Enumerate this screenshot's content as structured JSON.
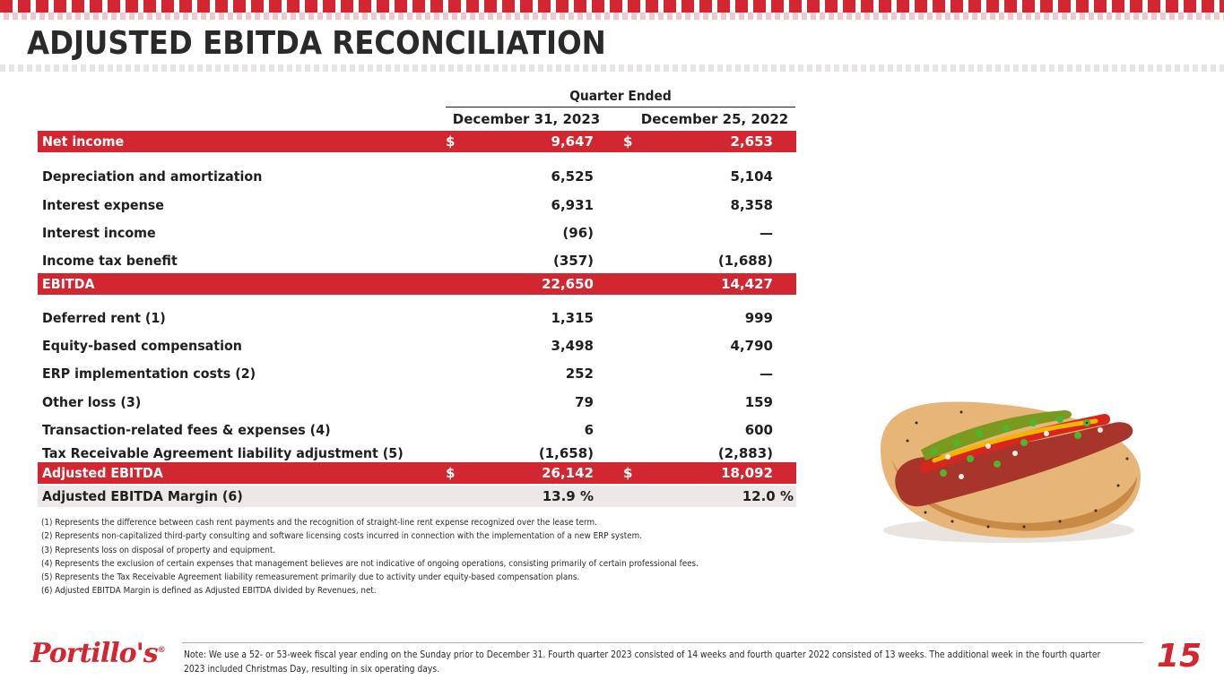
{
  "title": "ADJUSTED EBITDA RECONCILIATION",
  "table": {
    "group_header": "Quarter Ended",
    "col1_header": "December 31, 2023",
    "col2_header": "December 25, 2022",
    "rows": [
      {
        "label": "Net income",
        "cur1": "$",
        "v1": "9,647",
        "cur2": "$",
        "v2": "2,653",
        "style": "hl"
      },
      {
        "label": "Depreciation and amortization",
        "cur1": "",
        "v1": "6,525",
        "cur2": "",
        "v2": "5,104",
        "style": ""
      },
      {
        "label": "Interest expense",
        "cur1": "",
        "v1": "6,931",
        "cur2": "",
        "v2": "8,358",
        "style": ""
      },
      {
        "label": "Interest income",
        "cur1": "",
        "v1": "(96)",
        "cur2": "",
        "v2": "—",
        "style": ""
      },
      {
        "label": "Income tax benefit",
        "cur1": "",
        "v1": "(357)",
        "cur2": "",
        "v2": "(1,688)",
        "style": ""
      },
      {
        "label": "EBITDA",
        "cur1": "",
        "v1": "22,650",
        "cur2": "",
        "v2": "14,427",
        "style": "hl"
      },
      {
        "label": "Deferred rent (1)",
        "cur1": "",
        "v1": "1,315",
        "cur2": "",
        "v2": "999",
        "style": ""
      },
      {
        "label": "Equity-based compensation",
        "cur1": "",
        "v1": "3,498",
        "cur2": "",
        "v2": "4,790",
        "style": ""
      },
      {
        "label": "ERP implementation costs (2)",
        "cur1": "",
        "v1": "252",
        "cur2": "",
        "v2": "—",
        "style": ""
      },
      {
        "label": "Other loss (3)",
        "cur1": "",
        "v1": "79",
        "cur2": "",
        "v2": "159",
        "style": ""
      },
      {
        "label": "Transaction-related fees & expenses (4)",
        "cur1": "",
        "v1": "6",
        "cur2": "",
        "v2": "600",
        "style": ""
      },
      {
        "label": "Tax Receivable Agreement liability adjustment (5)",
        "cur1": "",
        "v1": "(1,658)",
        "cur2": "",
        "v2": "(2,883)",
        "style": ""
      },
      {
        "label": "Adjusted EBITDA",
        "cur1": "$",
        "v1": "26,142",
        "cur2": "$",
        "v2": "18,092",
        "style": "hl"
      },
      {
        "label": "Adjusted EBITDA Margin (6)",
        "cur1": "",
        "v1": "13.9 %",
        "cur2": "",
        "v2": "12.0 %",
        "style": "shade"
      }
    ]
  },
  "footnotes": [
    "(1) Represents the difference between cash rent payments and the recognition of straight-line rent expense recognized over the lease term.",
    "(2) Represents non-capitalized third-party consulting and software licensing costs incurred in connection with the implementation of a new ERP system.",
    "(3) Represents loss on disposal of property and equipment.",
    "(4) Represents the exclusion of certain expenses that management believes are not indicative of ongoing operations, consisting primarily of certain professional fees.",
    "(5) Represents the Tax Receivable Agreement liability remeasurement primarily due to activity under equity-based compensation plans.",
    "(6) Adjusted EBITDA Margin is defined as Adjusted EBITDA divided by Revenues, net."
  ],
  "footer": {
    "logo": "Portillo's",
    "logo_mark": "®",
    "note": "Note: We use a 52- or 53-week fiscal year ending on the Sunday prior to December 31. Fourth quarter 2023 consisted of 14 weeks and fourth quarter 2022 consisted of 13 weeks. The additional week in the fourth quarter 2023 included Christmas Day, resulting in six operating days.",
    "page_number": "15"
  },
  "colors": {
    "accent_red": "#d22630",
    "shade_gray": "#ebe8e7",
    "text_dark": "#1f1f1f"
  },
  "icons": [
    "hotdog-image"
  ]
}
